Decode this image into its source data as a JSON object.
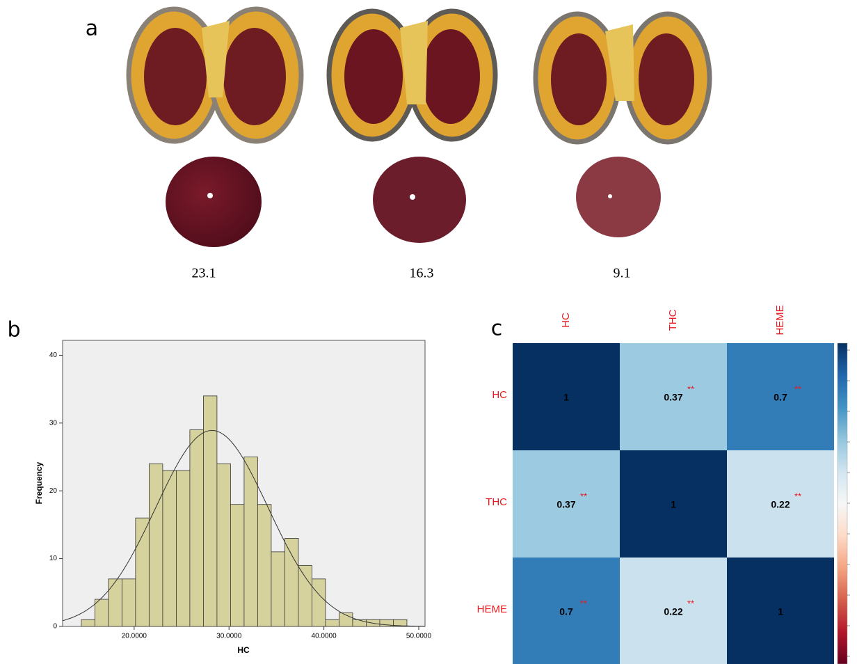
{
  "photos": {
    "label": "a",
    "captions": [
      23.1,
      16.3,
      9.1
    ]
  },
  "chart_data": [
    {
      "type": "histogram",
      "label": "b",
      "xlabel": "HC",
      "ylabel": "Frequency",
      "bins": [
        14.43,
        15.86,
        17.29,
        18.72,
        20.15,
        21.58,
        23.01,
        24.44,
        25.87,
        27.3,
        28.73,
        30.16,
        31.59,
        33.02,
        34.45,
        35.88,
        37.31,
        38.74,
        40.17,
        41.6,
        43.03,
        44.46,
        45.89,
        47.32,
        48.75
      ],
      "counts": [
        1,
        4,
        7,
        7,
        16,
        24,
        23,
        23,
        29,
        34,
        24,
        18,
        25,
        18,
        11,
        13,
        9,
        7,
        1,
        2,
        1,
        1,
        1,
        1
      ],
      "normal_curve": {
        "mean": 28.2,
        "sd": 5.92
      },
      "color": "#d5d29d",
      "xlim": [
        12.46,
        50.66
      ],
      "ylim": [
        0,
        42.2
      ],
      "xticks": [
        {
          "value": 20,
          "label": "20.0000"
        },
        {
          "value": 30,
          "label": "30.0000"
        },
        {
          "value": 40,
          "label": "40.0000"
        },
        {
          "value": 50,
          "label": "50.0000"
        }
      ],
      "yticks": [
        0,
        10,
        20,
        30,
        40
      ]
    },
    {
      "type": "heatmap",
      "label": "c",
      "categories": [
        "HC",
        "THC",
        "HEME"
      ],
      "values": [
        [
          1,
          0.37,
          0.7
        ],
        [
          0.37,
          1,
          0.22
        ],
        [
          0.7,
          0.22,
          1
        ]
      ],
      "stars": [
        [
          null,
          "**",
          "**"
        ],
        [
          "**",
          null,
          "**"
        ],
        [
          "**",
          "**",
          null
        ]
      ],
      "clim": [
        -1,
        1
      ],
      "colorscale": [
        "#67001f",
        "#b2182b",
        "#d6604d",
        "#f4a582",
        "#fddbc7",
        "#f7f7f7",
        "#d1e5f0",
        "#92c5de",
        "#4393c3",
        "#2166ac",
        "#053061"
      ]
    }
  ]
}
